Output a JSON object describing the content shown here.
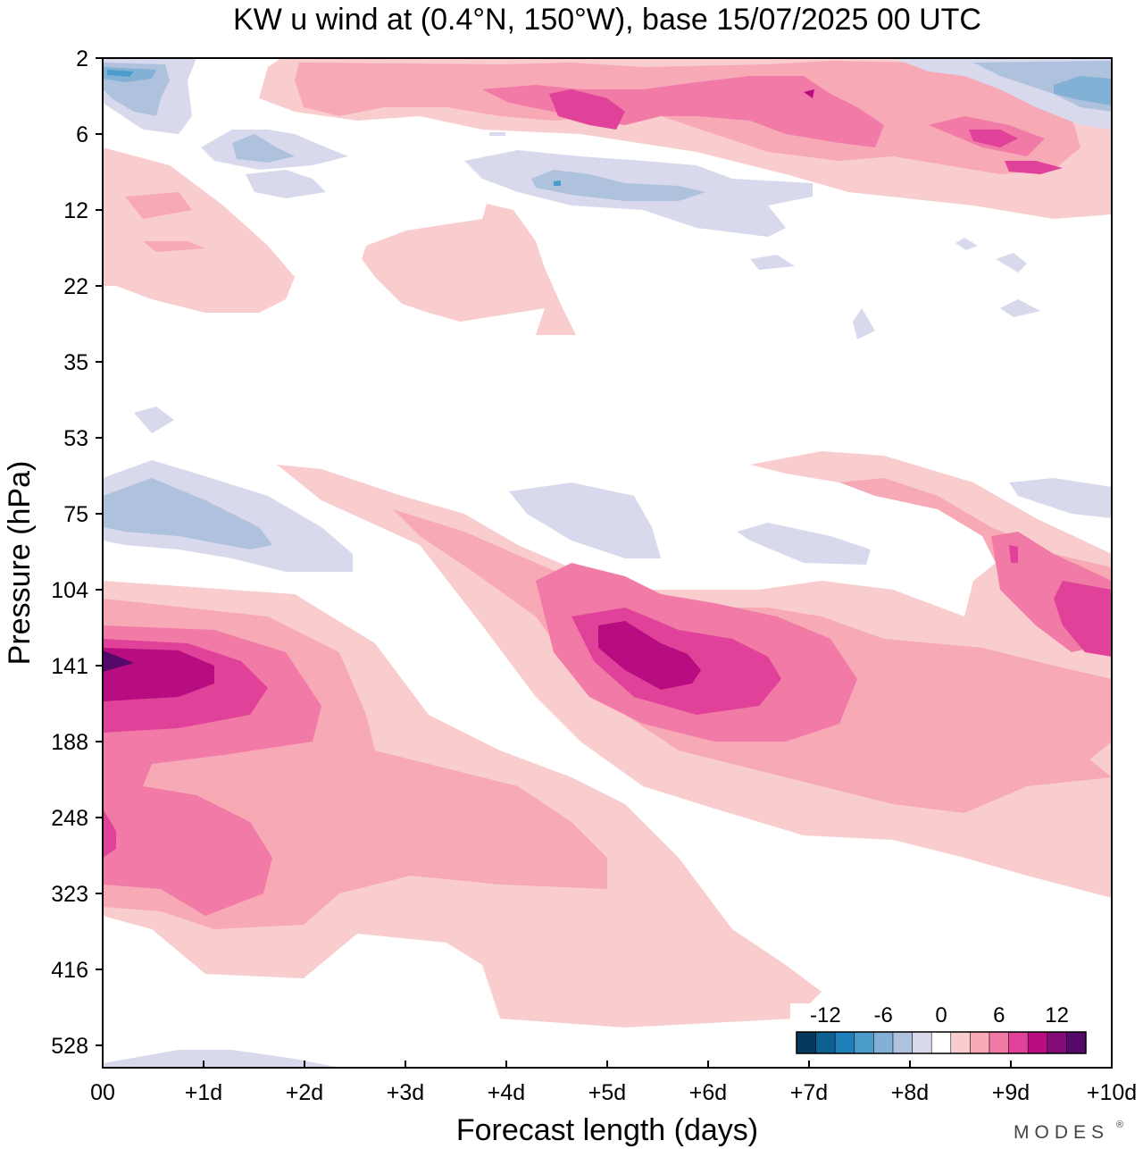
{
  "chart_data": {
    "type": "heatmap",
    "title": "KW u wind at (0.4°N, 150°W),  base 15/07/2025  00 UTC",
    "xlabel": "Forecast length (days)",
    "ylabel": "Pressure (hPa)",
    "x_ticks": [
      "00",
      "+1d",
      "+2d",
      "+3d",
      "+4d",
      "+5d",
      "+6d",
      "+7d",
      "+8d",
      "+9d",
      "+10d"
    ],
    "x_range_days": [
      0,
      10
    ],
    "y_ticks": [
      "2",
      "6",
      "12",
      "22",
      "35",
      "53",
      "75",
      "104",
      "141",
      "188",
      "248",
      "323",
      "416",
      "528"
    ],
    "y_scale": "log",
    "grid": false,
    "colorbar": {
      "position": "bottom-right",
      "tick_labels": [
        "-12",
        "-6",
        "0",
        "6",
        "12"
      ],
      "tick_values": [
        -12,
        -6,
        0,
        6,
        12
      ],
      "levels": [
        -14,
        -12,
        -10,
        -8,
        -6,
        -4,
        -2,
        0,
        2,
        4,
        6,
        8,
        10,
        12,
        14
      ],
      "colors": [
        "#053a5c",
        "#0d5f8f",
        "#1f7fb8",
        "#4c9ccb",
        "#82b1d5",
        "#aec1dd",
        "#d8d9ec",
        "#ffffff",
        "#f9cdcd",
        "#f7a9b6",
        "#f17aa7",
        "#e04199",
        "#b70d80",
        "#850b76",
        "#55096a"
      ]
    },
    "features": [
      {
        "kind": "westerly maximum",
        "day_start": 0,
        "day_end": 1.6,
        "center_day": 0.3,
        "pressure_hPa": 141,
        "max_ms": 14
      },
      {
        "kind": "westerly maximum",
        "day_start": 4.3,
        "day_end": 7.2,
        "center_day": 5.6,
        "pressure_hPa": 141,
        "max_ms": 12
      },
      {
        "kind": "westerly maximum",
        "day_start": 9.2,
        "day_end": 10,
        "center_day": 10,
        "pressure_hPa": 130,
        "max_ms": 10
      },
      {
        "kind": "westerly lower band",
        "day_start": 0,
        "day_end": 7,
        "pressure_hPa": 323,
        "max_ms": 10
      },
      {
        "kind": "easterly",
        "day_start": 0,
        "day_end": 2.5,
        "pressure_hPa": 75,
        "min_ms": -4
      },
      {
        "kind": "easterly",
        "day_start": 0,
        "day_end": 0.7,
        "pressure_hPa": 3,
        "min_ms": -6
      },
      {
        "kind": "easterly",
        "day_start": 9.3,
        "day_end": 10,
        "pressure_hPa": 4,
        "min_ms": -6
      },
      {
        "kind": "westerly upper band",
        "day_start": 1.8,
        "day_end": 10,
        "pressure_hPa": 5,
        "max_ms": 10
      }
    ]
  },
  "branding": {
    "text": "MODES",
    "mark": "®"
  }
}
